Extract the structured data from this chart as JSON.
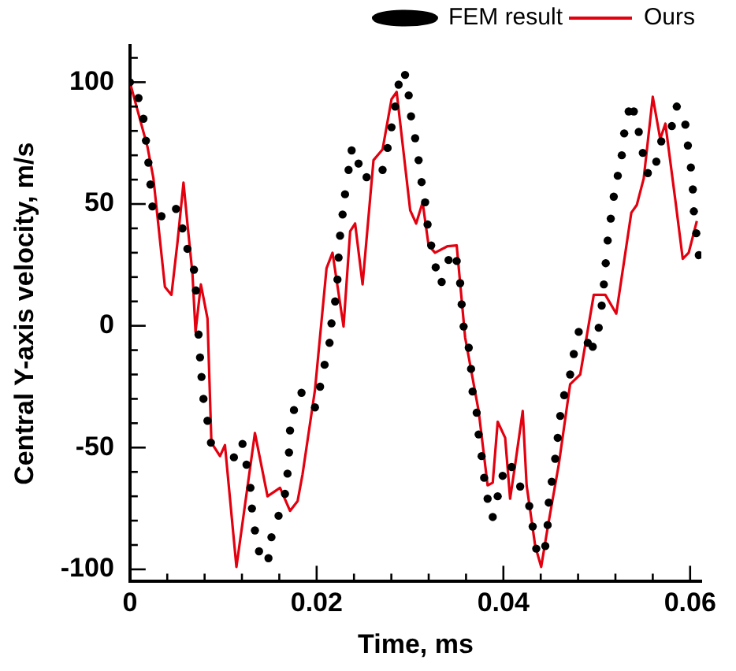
{
  "chart_data": {
    "type": "line",
    "xlabel": "Time, ms",
    "ylabel": "Central Y-axis velocity, m/s",
    "legend": "top right",
    "grid": false,
    "xlim": [
      0,
      0.0612
    ],
    "ylim": [
      -105,
      115
    ],
    "xticks": [
      0,
      {
        "value": 0.004,
        "label": null
      },
      {
        "value": 0.008,
        "label": null
      },
      {
        "value": 0.012,
        "label": null
      },
      {
        "value": 0.016,
        "label": null
      },
      0.02,
      {
        "value": 0.024,
        "label": null
      },
      {
        "value": 0.028,
        "label": null
      },
      {
        "value": 0.032,
        "label": null
      },
      {
        "value": 0.036,
        "label": null
      },
      0.04,
      {
        "value": 0.044,
        "label": null
      },
      {
        "value": 0.048,
        "label": null
      },
      {
        "value": 0.052,
        "label": null
      },
      {
        "value": 0.056,
        "label": null
      },
      0.06
    ],
    "yticks": [
      -100,
      {
        "value": -90,
        "label": null
      },
      {
        "value": -80,
        "label": null
      },
      {
        "value": -70,
        "label": null
      },
      {
        "value": -60,
        "label": null
      },
      -50,
      {
        "value": -40,
        "label": null
      },
      {
        "value": -30,
        "label": null
      },
      {
        "value": -20,
        "label": null
      },
      {
        "value": -10,
        "label": null
      },
      0,
      {
        "value": 10,
        "label": null
      },
      {
        "value": 20,
        "label": null
      },
      {
        "value": 30,
        "label": null
      },
      {
        "value": 40,
        "label": null
      },
      50,
      {
        "value": 60,
        "label": null
      },
      {
        "value": 70,
        "label": null
      },
      {
        "value": 80,
        "label": null
      },
      {
        "value": 90,
        "label": null
      },
      100,
      {
        "value": 110,
        "label": null
      }
    ],
    "series": [
      {
        "name": "FEM result",
        "type": "scatter",
        "marker": "circle",
        "color": "#000000",
        "x": [
          0,
          0.00092,
          0.00145,
          0.00172,
          0.00198,
          0.0022,
          0.00241,
          0.00338,
          0.00494,
          0.00563,
          0.00616,
          0.00686,
          0.00707,
          0.00735,
          0.00751,
          0.00767,
          0.00788,
          0.00831,
          0.00868,
          0.01114,
          0.01206,
          0.01249,
          0.01291,
          0.01307,
          0.01339,
          0.01383,
          0.01484,
          0.01516,
          0.01592,
          0.01661,
          0.01688,
          0.01704,
          0.01715,
          0.01757,
          0.01838,
          0.01982,
          0.02037,
          0.02085,
          0.02138,
          0.02159,
          0.02198,
          0.02223,
          0.02235,
          0.02251,
          0.02278,
          0.02304,
          0.02342,
          0.02375,
          0.02449,
          0.02535,
          0.02706,
          0.0276,
          0.02802,
          0.02841,
          0.02878,
          0.02947,
          0.02986,
          0.03011,
          0.03055,
          0.03092,
          0.03124,
          0.03162,
          0.03188,
          0.03227,
          0.03275,
          0.03339,
          0.03413,
          0.035,
          0.03537,
          0.03553,
          0.03574,
          0.03629,
          0.03654,
          0.0367,
          0.03714,
          0.03735,
          0.03767,
          0.03794,
          0.03831,
          0.03886,
          0.03939,
          0.03992,
          0.04088,
          0.0418,
          0.04277,
          0.04314,
          0.04352,
          0.04449,
          0.04474,
          0.04486,
          0.04518,
          0.04555,
          0.04582,
          0.04609,
          0.04651,
          0.04715,
          0.04754,
          0.04807,
          0.04904,
          0.04957,
          0.05021,
          0.05053,
          0.05076,
          0.05096,
          0.05117,
          0.0515,
          0.05182,
          0.05225,
          0.05268,
          0.05294,
          0.05342,
          0.05397,
          0.0545,
          0.05493,
          0.05547,
          0.05638,
          0.05691,
          0.05804,
          0.05857,
          0.05949,
          0.05976,
          0.06008,
          0.06029,
          0.0604,
          0.06066,
          0.06093
        ],
        "values": [
          100,
          93.5,
          85,
          76,
          67,
          58,
          49,
          45,
          48,
          40,
          31.6,
          23,
          14.5,
          -3.6,
          -13,
          -21,
          -30,
          -39,
          -48,
          -54,
          -48.5,
          -57,
          -66.5,
          -75,
          -84,
          -92.6,
          -95.4,
          -86.8,
          -78,
          -69,
          -60.7,
          -52,
          -43,
          -34.6,
          -27.5,
          -33.5,
          -25,
          -16,
          -7,
          1,
          10,
          19,
          28,
          37,
          45.7,
          54,
          64,
          72,
          66.6,
          61,
          64,
          73,
          81.5,
          90,
          99,
          103,
          94.6,
          86,
          77,
          68,
          59,
          50.7,
          41.6,
          33,
          24,
          18,
          27,
          26.6,
          17.5,
          8.8,
          -0.3,
          -9,
          -17.7,
          -27,
          -35.7,
          -44.6,
          -53.5,
          -62.4,
          -71,
          -78.5,
          -70,
          -61.6,
          -58,
          -66,
          -74,
          -82.4,
          -91.5,
          -90.4,
          -81.8,
          -72.6,
          -64,
          -54.6,
          -46,
          -37,
          -28.5,
          -20,
          -11.6,
          -2.5,
          -7,
          -8.6,
          -0.8,
          8.3,
          17,
          25.7,
          35,
          44,
          53,
          61.6,
          70,
          79,
          88,
          88,
          79.6,
          71,
          62.7,
          67.4,
          75.7,
          82,
          90,
          82.6,
          74,
          65,
          56,
          47,
          38,
          29
        ]
      },
      {
        "name": "Ours",
        "type": "line",
        "marker": "none",
        "line_style": "solid",
        "color": "#e3000f",
        "x": [
          0,
          0.00188,
          0.00252,
          0.00375,
          0.00445,
          0.0051,
          0.00574,
          0.00616,
          0.0067,
          0.00703,
          0.0076,
          0.00831,
          0.00873,
          0.00965,
          0.01018,
          0.01141,
          0.01339,
          0.01474,
          0.01608,
          0.01715,
          0.01796,
          0.01849,
          0.01982,
          0.02106,
          0.0217,
          0.02288,
          0.02359,
          0.02412,
          0.02492,
          0.02609,
          0.02706,
          0.02802,
          0.02857,
          0.03002,
          0.03066,
          0.03135,
          0.03199,
          0.03268,
          0.03404,
          0.035,
          0.0359,
          0.03735,
          0.03831,
          0.03886,
          0.03939,
          0.04019,
          0.04072,
          0.04127,
          0.04207,
          0.04249,
          0.04341,
          0.04405,
          0.04474,
          0.04593,
          0.04715,
          0.04823,
          0.04968,
          0.05092,
          0.05209,
          0.0537,
          0.05429,
          0.05503,
          0.056,
          0.0568,
          0.05735,
          0.05841,
          0.05921,
          0.05985,
          0.06072
        ],
        "values": [
          100,
          73.5,
          60.5,
          16,
          12.7,
          34.4,
          58.8,
          42,
          21.4,
          -2.5,
          17,
          3,
          -48,
          -53.5,
          -49,
          -99,
          -44,
          -70,
          -66.5,
          -76,
          -72,
          -61,
          -26.4,
          23.6,
          30,
          -0.3,
          38.8,
          42,
          17,
          68,
          72.4,
          93,
          96,
          47.4,
          42,
          50.7,
          33,
          30,
          32.7,
          33,
          -4.7,
          -35,
          -65.5,
          -64.4,
          -39.4,
          -46,
          -71,
          -56.8,
          -35,
          -65.5,
          -90.4,
          -99,
          -83,
          -57,
          -24,
          -20,
          12.7,
          12.7,
          5,
          46.4,
          49.6,
          60.5,
          94,
          76.7,
          83,
          51.8,
          27.5,
          30,
          43
        ]
      }
    ]
  }
}
